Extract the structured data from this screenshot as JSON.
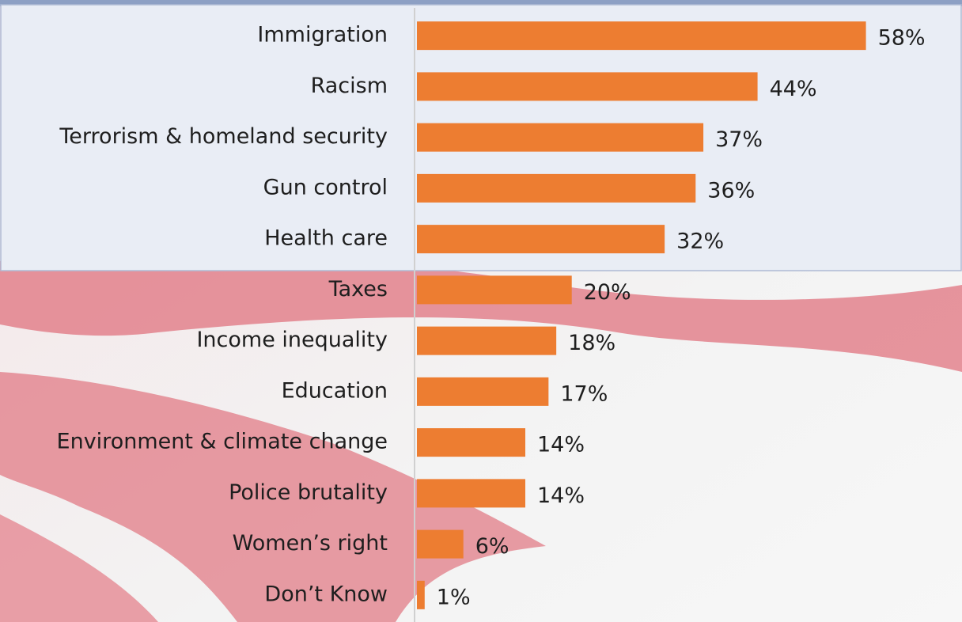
{
  "chart_data": {
    "type": "bar",
    "orientation": "horizontal",
    "categories": [
      "Immigration",
      "Racism",
      "Terrorism & homeland security",
      "Gun control",
      "Health care",
      "Taxes",
      "Income inequality",
      "Education",
      "Environment & climate change",
      "Police brutality",
      "Women’s right",
      "Don’t Know"
    ],
    "values": [
      58,
      44,
      37,
      36,
      32,
      20,
      18,
      17,
      14,
      14,
      6,
      1
    ],
    "value_labels": [
      "58%",
      "44%",
      "37%",
      "36%",
      "32%",
      "20%",
      "18%",
      "17%",
      "14%",
      "14%",
      "6%",
      "1%"
    ],
    "color": "#ed7d31",
    "xlim": [
      0,
      70
    ]
  }
}
